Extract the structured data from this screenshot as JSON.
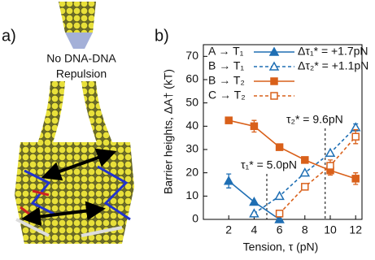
{
  "panel_a": {
    "label": "a)",
    "caption_lines": [
      "No DNA-DNA",
      "Repulsion"
    ]
  },
  "chart_data": {
    "type": "line",
    "panel_label": "b)",
    "x_label": "Tension, τ (pN)",
    "y_label": "Barrier heights, ΔA† (kT)",
    "xlim": [
      0,
      12.5
    ],
    "xticks": [
      2,
      4,
      6,
      8,
      10,
      12
    ],
    "ylim": [
      0,
      75
    ],
    "yticks": [
      0,
      10,
      20,
      30,
      40,
      50,
      60,
      70
    ],
    "series": [
      {
        "name": "A → T₁",
        "color": "#1f6fb4",
        "dashed": false,
        "marker": "triangle",
        "filled": true,
        "x": [
          2,
          4,
          6
        ],
        "values": [
          16.5,
          7.5,
          0
        ],
        "errors": [
          3,
          null,
          null
        ]
      },
      {
        "name": "B → T₁",
        "color": "#1f6fb4",
        "dashed": true,
        "marker": "triangle",
        "filled": false,
        "x": [
          4,
          6,
          8,
          10,
          12
        ],
        "values": [
          2.5,
          10,
          20,
          28.5,
          39.5
        ],
        "errors": [
          null,
          null,
          null,
          null,
          1.5
        ]
      },
      {
        "name": "B → T₂",
        "color": "#d9601a",
        "dashed": false,
        "marker": "square",
        "filled": true,
        "x": [
          2,
          4,
          6,
          8,
          10,
          12
        ],
        "values": [
          42.5,
          40,
          31,
          25.5,
          21,
          17.5
        ],
        "errors": [
          null,
          2.5,
          null,
          null,
          2,
          2.5
        ]
      },
      {
        "name": "C → T₂",
        "color": "#d9601a",
        "dashed": true,
        "marker": "square",
        "filled": false,
        "x": [
          6,
          8,
          10,
          12
        ],
        "values": [
          2.5,
          14,
          23,
          35.5
        ],
        "errors": [
          null,
          null,
          2.5,
          3
        ]
      }
    ],
    "legend_notes": [
      "Δτ₁* = +1.7pN",
      "Δτ₂* = +1.1pN"
    ],
    "vlines": [
      {
        "x": 5.0,
        "label": "τ₁* = 5.0pN"
      },
      {
        "x": 9.6,
        "label": "τ₂* = 9.6pN"
      }
    ]
  }
}
